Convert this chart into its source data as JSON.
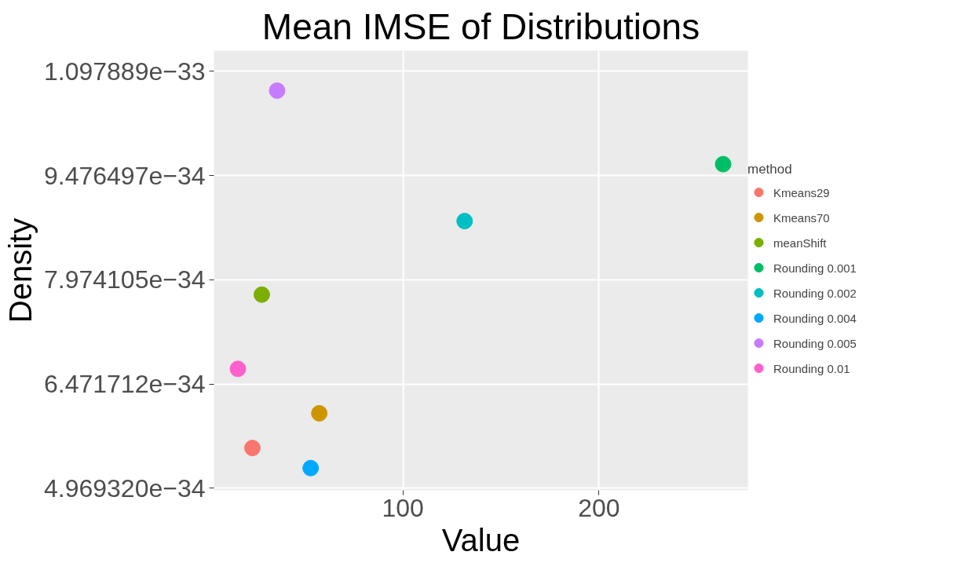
{
  "chart_data": {
    "type": "scatter",
    "title": "Mean IMSE of Distributions",
    "xlabel": "Value",
    "ylabel": "Density",
    "legend_title": "method",
    "legend": "right",
    "grid": true,
    "marker": "circle",
    "xlim": [
      3.7,
      275.9
    ],
    "ylim": [
      4.94e-34,
      1.1276e-33
    ],
    "xticks": [
      100,
      200
    ],
    "yticks": [
      {
        "value": 4.96932e-34,
        "label": "4.969320e−34"
      },
      {
        "value": 6.471712e-34,
        "label": "6.471712e−34"
      },
      {
        "value": 7.974105e-34,
        "label": "7.974105e−34"
      },
      {
        "value": 9.476497e-34,
        "label": "9.476497e−34"
      },
      {
        "value": 1.097889e-33,
        "label": "1.097889e−33"
      }
    ],
    "series": [
      {
        "name": "Kmeans29",
        "color": "#f8766d",
        "x": [
          23.3
        ],
        "values": [
          5.55e-34
        ]
      },
      {
        "name": "Kmeans70",
        "color": "#cd9600",
        "x": [
          57.4
        ],
        "values": [
          6.05e-34
        ]
      },
      {
        "name": "meanShift",
        "color": "#7cae00",
        "x": [
          28.1
        ],
        "values": [
          7.76e-34
        ]
      },
      {
        "name": "Rounding 0.001",
        "color": "#00be67",
        "x": [
          263.3
        ],
        "values": [
          9.64e-34
        ]
      },
      {
        "name": "Rounding 0.002",
        "color": "#00bfc4",
        "x": [
          131.5
        ],
        "values": [
          8.82e-34
        ]
      },
      {
        "name": "Rounding 0.004",
        "color": "#00a9ff",
        "x": [
          53.0
        ],
        "values": [
          5.26e-34
        ]
      },
      {
        "name": "Rounding 0.005",
        "color": "#c77cff",
        "x": [
          35.9
        ],
        "values": [
          1.07e-33
        ]
      },
      {
        "name": "Rounding 0.01",
        "color": "#ff61cc",
        "x": [
          15.9
        ],
        "values": [
          6.69e-34
        ]
      }
    ]
  }
}
